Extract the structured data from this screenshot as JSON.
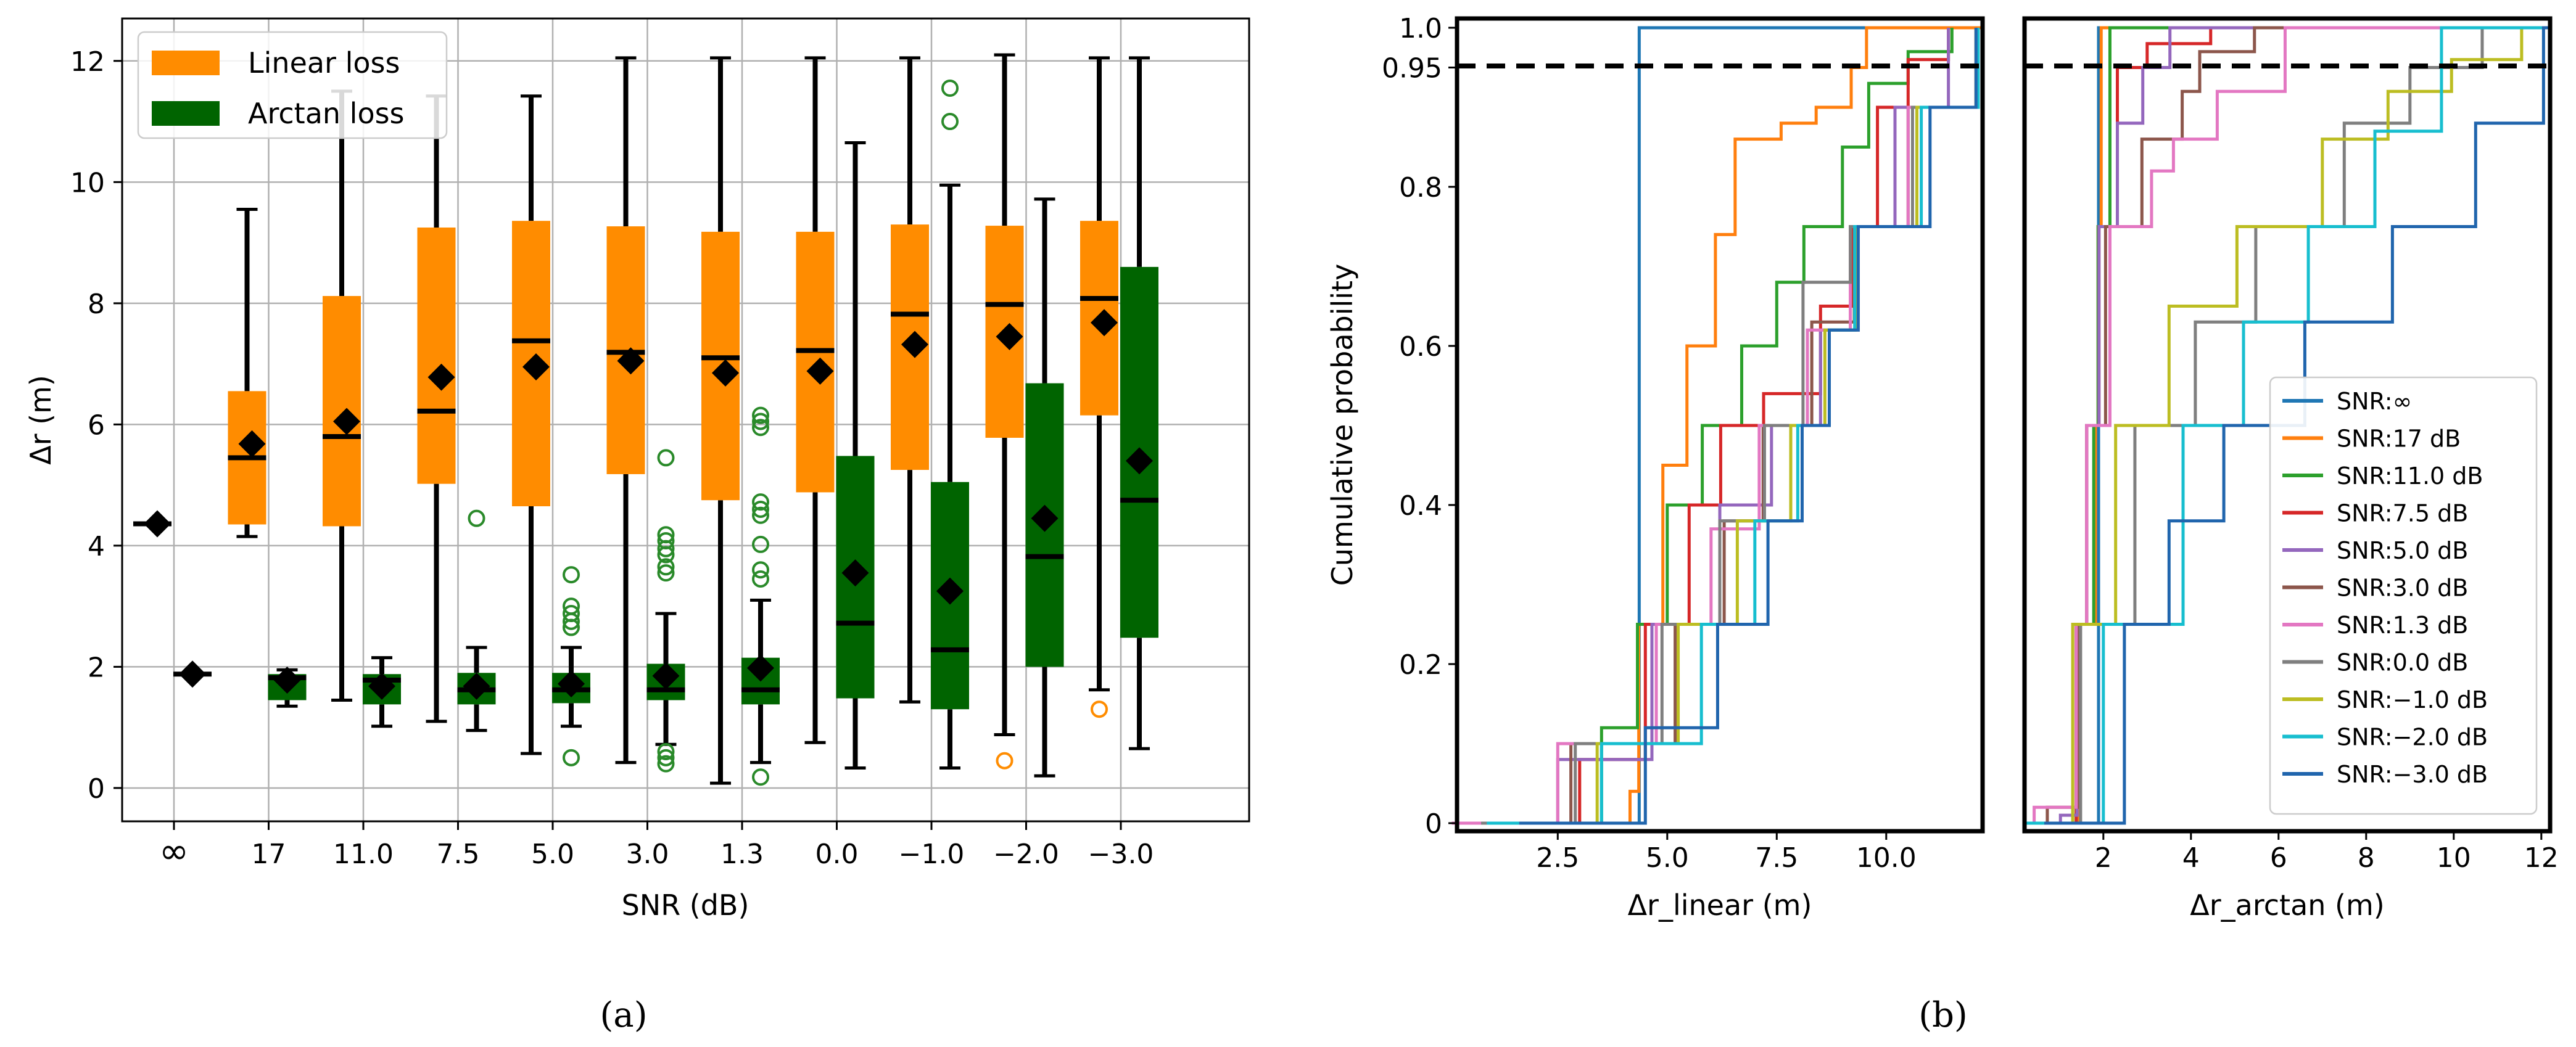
{
  "chart_data": [
    {
      "type": "box",
      "panel_label": "(a)",
      "xlabel": "SNR (dB)",
      "ylabel": "Δr (m)",
      "ylim": [
        -0.55,
        12.7
      ],
      "yticks": [
        0,
        2,
        4,
        6,
        8,
        10,
        12
      ],
      "categories": [
        "∞",
        "17",
        "11.0",
        "7.5",
        "5.0",
        "3.0",
        "1.3",
        "0.0",
        "−1.0",
        "−2.0",
        "−3.0"
      ],
      "legend": {
        "position": "top-left",
        "entries": [
          {
            "label": "Linear loss",
            "color": "#ff8c00"
          },
          {
            "label": "Arctan loss",
            "color": "#006400"
          }
        ]
      },
      "series": [
        {
          "name": "Linear loss",
          "color": "#ff8c00",
          "boxes": [
            {
              "whislo": 4.36,
              "q1": 4.36,
              "med": 4.36,
              "q3": 4.36,
              "whishi": 4.36,
              "mean": 4.36,
              "fliers": []
            },
            {
              "whislo": 4.15,
              "q1": 4.35,
              "med": 5.45,
              "q3": 6.55,
              "whishi": 9.55,
              "mean": 5.68,
              "fliers": []
            },
            {
              "whislo": 1.45,
              "q1": 4.32,
              "med": 5.8,
              "q3": 8.12,
              "whishi": 11.5,
              "mean": 6.05,
              "fliers": []
            },
            {
              "whislo": 1.1,
              "q1": 5.02,
              "med": 6.22,
              "q3": 9.25,
              "whishi": 11.42,
              "mean": 6.78,
              "fliers": []
            },
            {
              "whislo": 0.57,
              "q1": 4.65,
              "med": 7.38,
              "q3": 9.36,
              "whishi": 11.42,
              "mean": 6.95,
              "fliers": []
            },
            {
              "whislo": 0.42,
              "q1": 5.18,
              "med": 7.19,
              "q3": 9.27,
              "whishi": 12.05,
              "mean": 7.05,
              "fliers": []
            },
            {
              "whislo": 0.08,
              "q1": 4.75,
              "med": 7.1,
              "q3": 9.18,
              "whishi": 12.05,
              "mean": 6.85,
              "fliers": []
            },
            {
              "whislo": 0.75,
              "q1": 4.88,
              "med": 7.22,
              "q3": 9.18,
              "whishi": 12.05,
              "mean": 6.88,
              "fliers": []
            },
            {
              "whislo": 1.42,
              "q1": 5.25,
              "med": 7.82,
              "q3": 9.3,
              "whishi": 12.05,
              "mean": 7.32,
              "fliers": []
            },
            {
              "whislo": 0.88,
              "q1": 5.78,
              "med": 7.98,
              "q3": 9.28,
              "whishi": 12.1,
              "mean": 7.45,
              "fliers": [
                0.45
              ]
            },
            {
              "whislo": 1.62,
              "q1": 6.15,
              "med": 8.08,
              "q3": 9.36,
              "whishi": 12.05,
              "mean": 7.68,
              "fliers": [
                1.3
              ]
            }
          ]
        },
        {
          "name": "Arctan loss",
          "color": "#006400",
          "boxes": [
            {
              "whislo": 1.88,
              "q1": 1.88,
              "med": 1.88,
              "q3": 1.88,
              "whishi": 1.88,
              "mean": 1.88,
              "fliers": []
            },
            {
              "whislo": 1.35,
              "q1": 1.45,
              "med": 1.82,
              "q3": 1.88,
              "whishi": 1.95,
              "mean": 1.78,
              "fliers": []
            },
            {
              "whislo": 1.02,
              "q1": 1.38,
              "med": 1.78,
              "q3": 1.88,
              "whishi": 2.15,
              "mean": 1.68,
              "fliers": []
            },
            {
              "whislo": 0.95,
              "q1": 1.38,
              "med": 1.62,
              "q3": 1.9,
              "whishi": 2.32,
              "mean": 1.68,
              "fliers": [
                4.45
              ]
            },
            {
              "whislo": 1.02,
              "q1": 1.4,
              "med": 1.62,
              "q3": 1.9,
              "whishi": 2.32,
              "mean": 1.72,
              "fliers": [
                3.52,
                3.0,
                2.88,
                2.75,
                2.65,
                0.5
              ]
            },
            {
              "whislo": 0.72,
              "q1": 1.45,
              "med": 1.62,
              "q3": 2.05,
              "whishi": 2.88,
              "mean": 1.85,
              "fliers": [
                5.45,
                4.18,
                4.08,
                3.95,
                3.85,
                3.65,
                3.55,
                0.6,
                0.5,
                0.4
              ]
            },
            {
              "whislo": 0.42,
              "q1": 1.38,
              "med": 1.62,
              "q3": 2.15,
              "whishi": 3.1,
              "mean": 1.98,
              "fliers": [
                6.15,
                6.05,
                5.95,
                4.72,
                4.6,
                4.5,
                4.02,
                3.6,
                3.45,
                0.18
              ]
            },
            {
              "whislo": 0.33,
              "q1": 1.48,
              "med": 2.72,
              "q3": 5.48,
              "whishi": 10.65,
              "mean": 3.55,
              "fliers": []
            },
            {
              "whislo": 0.33,
              "q1": 1.3,
              "med": 2.28,
              "q3": 5.05,
              "whishi": 9.95,
              "mean": 3.25,
              "fliers": [
                11.55,
                11.0
              ]
            },
            {
              "whislo": 0.2,
              "q1": 2.0,
              "med": 3.82,
              "q3": 6.68,
              "whishi": 9.72,
              "mean": 4.45,
              "fliers": []
            },
            {
              "whislo": 0.65,
              "q1": 2.48,
              "med": 4.75,
              "q3": 8.6,
              "whishi": 12.05,
              "mean": 5.4,
              "fliers": []
            }
          ]
        }
      ]
    },
    {
      "type": "line",
      "panel_label": "(b)",
      "ylabel": "Cumulative probability",
      "yticks": [
        "0",
        "0.2",
        "0.4",
        "0.6",
        "0.8",
        "0.95",
        "1.0"
      ],
      "threshold": 0.95,
      "subplots": [
        {
          "xlabel": "Δr_linear (m)",
          "xlim": [
            0.2,
            12.2
          ],
          "xticks": [
            "2.5",
            "5.0",
            "7.5",
            "10.0"
          ],
          "series": [
            {
              "name": "SNR:∞",
              "color": "#1f77b4",
              "x": [
                0.2,
                4.34,
                4.36,
                12.2
              ],
              "y": [
                0,
                0,
                1.0,
                1.0
              ]
            },
            {
              "name": "SNR:17 dB",
              "color": "#ff7f0e",
              "x": [
                0.2,
                4.15,
                4.35,
                4.9,
                5.45,
                6.1,
                6.55,
                7.6,
                8.4,
                9.2,
                9.55,
                12.2
              ],
              "y": [
                0,
                0.04,
                0.25,
                0.45,
                0.6,
                0.74,
                0.86,
                0.88,
                0.9,
                0.95,
                1.0,
                1.0
              ]
            },
            {
              "name": "SNR:11.0 dB",
              "color": "#2ca02c",
              "x": [
                1.45,
                3.5,
                4.32,
                5.0,
                5.8,
                6.7,
                7.5,
                8.12,
                9.0,
                9.6,
                10.5,
                11.5
              ],
              "y": [
                0,
                0.12,
                0.25,
                0.4,
                0.5,
                0.6,
                0.68,
                0.75,
                0.85,
                0.93,
                0.97,
                1.0
              ]
            },
            {
              "name": "SNR:7.5 dB",
              "color": "#d62728",
              "x": [
                1.1,
                3.0,
                4.5,
                5.5,
                6.22,
                7.2,
                8.5,
                9.25,
                9.8,
                10.5,
                11.42
              ],
              "y": [
                0,
                0.08,
                0.25,
                0.4,
                0.5,
                0.54,
                0.65,
                0.75,
                0.9,
                0.96,
                1.0
              ]
            },
            {
              "name": "SNR:5.0 dB",
              "color": "#9467bd",
              "x": [
                0.57,
                2.5,
                4.65,
                6.2,
                7.38,
                8.5,
                9.36,
                10.2,
                11.42
              ],
              "y": [
                0,
                0.08,
                0.25,
                0.4,
                0.5,
                0.62,
                0.75,
                0.9,
                1.0
              ]
            },
            {
              "name": "SNR:3.0 dB",
              "color": "#8c564b",
              "x": [
                0.42,
                2.8,
                5.18,
                6.3,
                7.19,
                8.3,
                9.27,
                10.5,
                12.05
              ],
              "y": [
                0,
                0.1,
                0.25,
                0.38,
                0.5,
                0.63,
                0.75,
                0.9,
                1.0
              ]
            },
            {
              "name": "SNR:1.3 dB",
              "color": "#e377c2",
              "x": [
                0.08,
                2.5,
                4.75,
                6.0,
                7.1,
                8.2,
                9.18,
                10.5,
                12.05
              ],
              "y": [
                0,
                0.1,
                0.25,
                0.37,
                0.5,
                0.62,
                0.75,
                0.9,
                1.0
              ]
            },
            {
              "name": "SNR:0.0 dB",
              "color": "#7f7f7f",
              "x": [
                0.75,
                2.9,
                4.88,
                6.2,
                7.22,
                8.1,
                9.18,
                10.6,
                12.05
              ],
              "y": [
                0,
                0.1,
                0.25,
                0.38,
                0.5,
                0.68,
                0.75,
                0.9,
                1.0
              ]
            },
            {
              "name": "SNR:−1.0 dB",
              "color": "#bcbd22",
              "x": [
                1.42,
                3.4,
                5.25,
                6.6,
                7.82,
                8.6,
                9.3,
                10.7,
                12.05
              ],
              "y": [
                0,
                0.1,
                0.25,
                0.38,
                0.5,
                0.62,
                0.75,
                0.9,
                1.0
              ]
            },
            {
              "name": "SNR:−2.0 dB",
              "color": "#17becf",
              "x": [
                0.88,
                3.5,
                5.78,
                7.0,
                7.98,
                8.7,
                9.28,
                10.8,
                12.1
              ],
              "y": [
                0,
                0.1,
                0.25,
                0.38,
                0.5,
                0.62,
                0.75,
                0.9,
                1.0
              ]
            },
            {
              "name": "SNR:−3.0 dB",
              "color": "#2065ad",
              "x": [
                1.62,
                4.5,
                6.15,
                7.3,
                8.08,
                8.7,
                9.36,
                11.0,
                12.05
              ],
              "y": [
                0,
                0.12,
                0.25,
                0.38,
                0.5,
                0.62,
                0.75,
                0.9,
                1.0
              ]
            }
          ]
        },
        {
          "xlabel": "Δr_arctan (m)",
          "xlim": [
            0.2,
            12.2
          ],
          "xticks": [
            "2",
            "4",
            "6",
            "8",
            "10",
            "12"
          ],
          "series": [
            {
              "name": "SNR:∞",
              "color": "#1f77b4",
              "x": [
                0.2,
                1.87,
                1.89,
                12.2
              ],
              "y": [
                0,
                0,
                1.0,
                1.0
              ]
            },
            {
              "name": "SNR:17 dB",
              "color": "#ff7f0e",
              "x": [
                1.35,
                1.45,
                1.82,
                1.88,
                1.95,
                12.2
              ],
              "y": [
                0,
                0.25,
                0.5,
                0.75,
                1.0,
                1.0
              ]
            },
            {
              "name": "SNR:11.0 dB",
              "color": "#2ca02c",
              "x": [
                1.02,
                1.38,
                1.78,
                1.88,
                2.15,
                12.2
              ],
              "y": [
                0,
                0.25,
                0.5,
                0.75,
                1.0,
                1.0
              ]
            },
            {
              "name": "SNR:7.5 dB",
              "color": "#d62728",
              "x": [
                0.95,
                1.38,
                1.62,
                1.9,
                2.32,
                3.0,
                4.45,
                12.2
              ],
              "y": [
                0,
                0.25,
                0.5,
                0.75,
                0.95,
                0.98,
                1.0,
                1.0
              ]
            },
            {
              "name": "SNR:5.0 dB",
              "color": "#9467bd",
              "x": [
                0.5,
                1.02,
                1.4,
                1.62,
                1.9,
                2.32,
                2.9,
                3.52,
                12.2
              ],
              "y": [
                0,
                0.01,
                0.25,
                0.5,
                0.75,
                0.88,
                0.95,
                1.0,
                1.0
              ]
            },
            {
              "name": "SNR:3.0 dB",
              "color": "#8c564b",
              "x": [
                0.4,
                0.72,
                1.45,
                1.62,
                2.05,
                2.88,
                3.8,
                4.2,
                5.45,
                12.2
              ],
              "y": [
                0,
                0.02,
                0.25,
                0.5,
                0.75,
                0.86,
                0.92,
                0.97,
                1.0,
                1.0
              ]
            },
            {
              "name": "SNR:1.3 dB",
              "color": "#e377c2",
              "x": [
                0.18,
                0.42,
                1.38,
                1.62,
                2.15,
                3.1,
                3.6,
                4.6,
                6.15,
                12.2
              ],
              "y": [
                0,
                0.02,
                0.25,
                0.5,
                0.75,
                0.82,
                0.86,
                0.92,
                1.0,
                1.0
              ]
            },
            {
              "name": "SNR:0.0 dB",
              "color": "#7f7f7f",
              "x": [
                0.33,
                1.48,
                2.72,
                4.1,
                5.48,
                7.5,
                9.0,
                10.65,
                12.2
              ],
              "y": [
                0,
                0.25,
                0.5,
                0.63,
                0.75,
                0.88,
                0.95,
                1.0,
                1.0
              ]
            },
            {
              "name": "SNR:−1.0 dB",
              "color": "#bcbd22",
              "x": [
                0.33,
                1.3,
                2.28,
                3.5,
                5.05,
                7.0,
                8.5,
                9.95,
                11.55,
                12.2
              ],
              "y": [
                0,
                0.25,
                0.5,
                0.65,
                0.75,
                0.86,
                0.92,
                0.96,
                1.0,
                1.0
              ]
            },
            {
              "name": "SNR:−2.0 dB",
              "color": "#17becf",
              "x": [
                0.2,
                2.0,
                3.82,
                5.2,
                6.68,
                8.2,
                9.72,
                12.2
              ],
              "y": [
                0,
                0.25,
                0.5,
                0.63,
                0.75,
                0.87,
                1.0,
                1.0
              ]
            },
            {
              "name": "SNR:−3.0 dB",
              "color": "#2065ad",
              "x": [
                0.65,
                2.48,
                3.5,
                4.75,
                6.6,
                8.6,
                10.5,
                12.05,
                12.2
              ],
              "y": [
                0,
                0.25,
                0.38,
                0.5,
                0.63,
                0.75,
                0.88,
                1.0,
                1.0
              ]
            }
          ]
        }
      ]
    }
  ]
}
